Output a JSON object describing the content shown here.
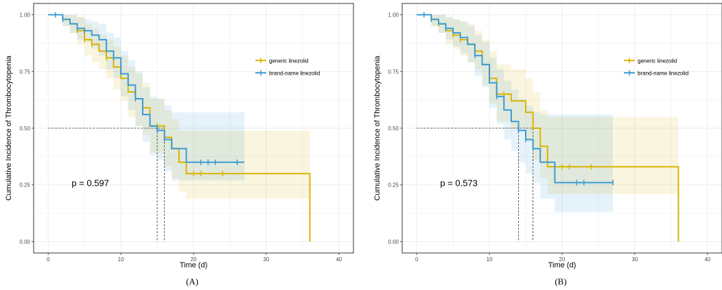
{
  "colors": {
    "generic": "#D9B300",
    "brand": "#3A9BD1"
  },
  "chart_data": [
    {
      "type": "line",
      "panel_label": "(A)",
      "xlabel": "Time (d)",
      "ylabel": "Cumulative Incidence of Thrombocytopenia",
      "xlim": [
        -2,
        42
      ],
      "ylim": [
        -0.05,
        1.05
      ],
      "xticks": [
        0,
        10,
        20,
        30,
        40
      ],
      "yticks": [
        "0.00",
        "0.25",
        "0.50",
        "0.75",
        "1.00"
      ],
      "grid": true,
      "legend_position": "right",
      "annotation": "p = 0.597",
      "median_lines": [
        15,
        16
      ],
      "series": [
        {
          "name": "generic linezolid",
          "color_key": "generic",
          "step_x": [
            0,
            2,
            3,
            4,
            5,
            6,
            7,
            8,
            9,
            10,
            11,
            12,
            13,
            14,
            16,
            17,
            18,
            19,
            36
          ],
          "step_y": [
            1.0,
            0.98,
            0.96,
            0.93,
            0.89,
            0.87,
            0.84,
            0.81,
            0.77,
            0.72,
            0.66,
            0.63,
            0.59,
            0.51,
            0.46,
            0.41,
            0.35,
            0.3,
            0.0
          ],
          "end_x": 36,
          "censor_x": [
            4,
            5,
            6,
            8,
            13,
            15,
            16,
            20,
            21,
            24
          ],
          "ci_upper": [
            1.0,
            1.0,
            1.0,
            0.99,
            0.96,
            0.94,
            0.91,
            0.89,
            0.86,
            0.82,
            0.77,
            0.74,
            0.7,
            0.63,
            0.58,
            0.54,
            0.49,
            0.49,
            0.49
          ],
          "ci_lower": [
            1.0,
            0.95,
            0.92,
            0.87,
            0.82,
            0.79,
            0.76,
            0.72,
            0.67,
            0.62,
            0.55,
            0.51,
            0.47,
            0.39,
            0.33,
            0.28,
            0.22,
            0.19,
            0.19
          ]
        },
        {
          "name": "brand-name linezolid",
          "color_key": "brand",
          "step_x": [
            0,
            2,
            3,
            4,
            5,
            6,
            7,
            8,
            9,
            10,
            11,
            12,
            13,
            14,
            15,
            16,
            17,
            19,
            27
          ],
          "step_y": [
            1.0,
            0.98,
            0.96,
            0.94,
            0.93,
            0.91,
            0.89,
            0.84,
            0.81,
            0.74,
            0.69,
            0.63,
            0.56,
            0.51,
            0.49,
            0.45,
            0.41,
            0.35,
            0.35
          ],
          "end_x": 27,
          "censor_x": [
            1,
            2,
            4,
            5,
            9,
            12,
            15,
            16,
            21,
            22,
            23,
            26
          ],
          "ci_upper": [
            1.0,
            1.0,
            1.0,
            0.99,
            0.98,
            0.97,
            0.96,
            0.92,
            0.9,
            0.84,
            0.8,
            0.75,
            0.68,
            0.64,
            0.63,
            0.6,
            0.57,
            0.57,
            0.57
          ],
          "ci_lower": [
            1.0,
            0.95,
            0.92,
            0.89,
            0.88,
            0.85,
            0.82,
            0.76,
            0.72,
            0.64,
            0.58,
            0.51,
            0.44,
            0.38,
            0.36,
            0.31,
            0.27,
            0.27,
            0.27
          ]
        }
      ]
    },
    {
      "type": "line",
      "panel_label": "(B)",
      "xlabel": "Time (d)",
      "ylabel": "Cumulative Incidence of Thrombocytopenia",
      "xlim": [
        -2,
        42
      ],
      "ylim": [
        -0.05,
        1.05
      ],
      "xticks": [
        0,
        10,
        20,
        30,
        40
      ],
      "yticks": [
        "0.00",
        "0.25",
        "0.50",
        "0.75",
        "1.00"
      ],
      "grid": true,
      "legend_position": "right",
      "annotation": "p = 0.573",
      "median_lines": [
        14,
        16
      ],
      "series": [
        {
          "name": "generic linezolid",
          "color_key": "generic",
          "step_x": [
            0,
            2,
            3,
            4,
            5,
            6,
            7,
            8,
            9,
            10,
            11,
            13,
            15,
            16,
            17,
            18,
            36
          ],
          "step_y": [
            1.0,
            0.98,
            0.96,
            0.93,
            0.91,
            0.89,
            0.87,
            0.84,
            0.78,
            0.72,
            0.65,
            0.62,
            0.57,
            0.5,
            0.42,
            0.33,
            0.0
          ],
          "end_x": 36,
          "censor_x": [
            3,
            5,
            6,
            12,
            19,
            20,
            21,
            24
          ],
          "ci_upper": [
            1.0,
            1.0,
            1.0,
            0.99,
            0.98,
            0.97,
            0.96,
            0.93,
            0.89,
            0.84,
            0.78,
            0.76,
            0.72,
            0.66,
            0.58,
            0.55,
            0.55
          ],
          "ci_lower": [
            1.0,
            0.95,
            0.92,
            0.87,
            0.85,
            0.82,
            0.79,
            0.76,
            0.69,
            0.61,
            0.53,
            0.5,
            0.44,
            0.36,
            0.28,
            0.21,
            0.21
          ]
        },
        {
          "name": "brand-name linezolid",
          "color_key": "brand",
          "step_x": [
            0,
            2,
            3,
            4,
            5,
            6,
            7,
            8,
            9,
            10,
            11,
            12,
            13,
            14,
            15,
            16,
            17,
            19,
            27
          ],
          "step_y": [
            1.0,
            0.98,
            0.96,
            0.94,
            0.92,
            0.9,
            0.87,
            0.82,
            0.78,
            0.7,
            0.64,
            0.58,
            0.53,
            0.49,
            0.45,
            0.41,
            0.35,
            0.26,
            0.26
          ],
          "end_x": 27,
          "censor_x": [
            1,
            2,
            4,
            8,
            11,
            14,
            15,
            16,
            22,
            23,
            27
          ],
          "ci_upper": [
            1.0,
            1.0,
            1.0,
            0.99,
            0.98,
            0.97,
            0.95,
            0.91,
            0.88,
            0.81,
            0.76,
            0.71,
            0.67,
            0.63,
            0.6,
            0.57,
            0.56,
            0.56,
            0.56
          ],
          "ci_lower": [
            1.0,
            0.95,
            0.92,
            0.89,
            0.86,
            0.83,
            0.79,
            0.73,
            0.68,
            0.59,
            0.52,
            0.45,
            0.4,
            0.35,
            0.3,
            0.26,
            0.19,
            0.13,
            0.13
          ]
        }
      ]
    }
  ]
}
